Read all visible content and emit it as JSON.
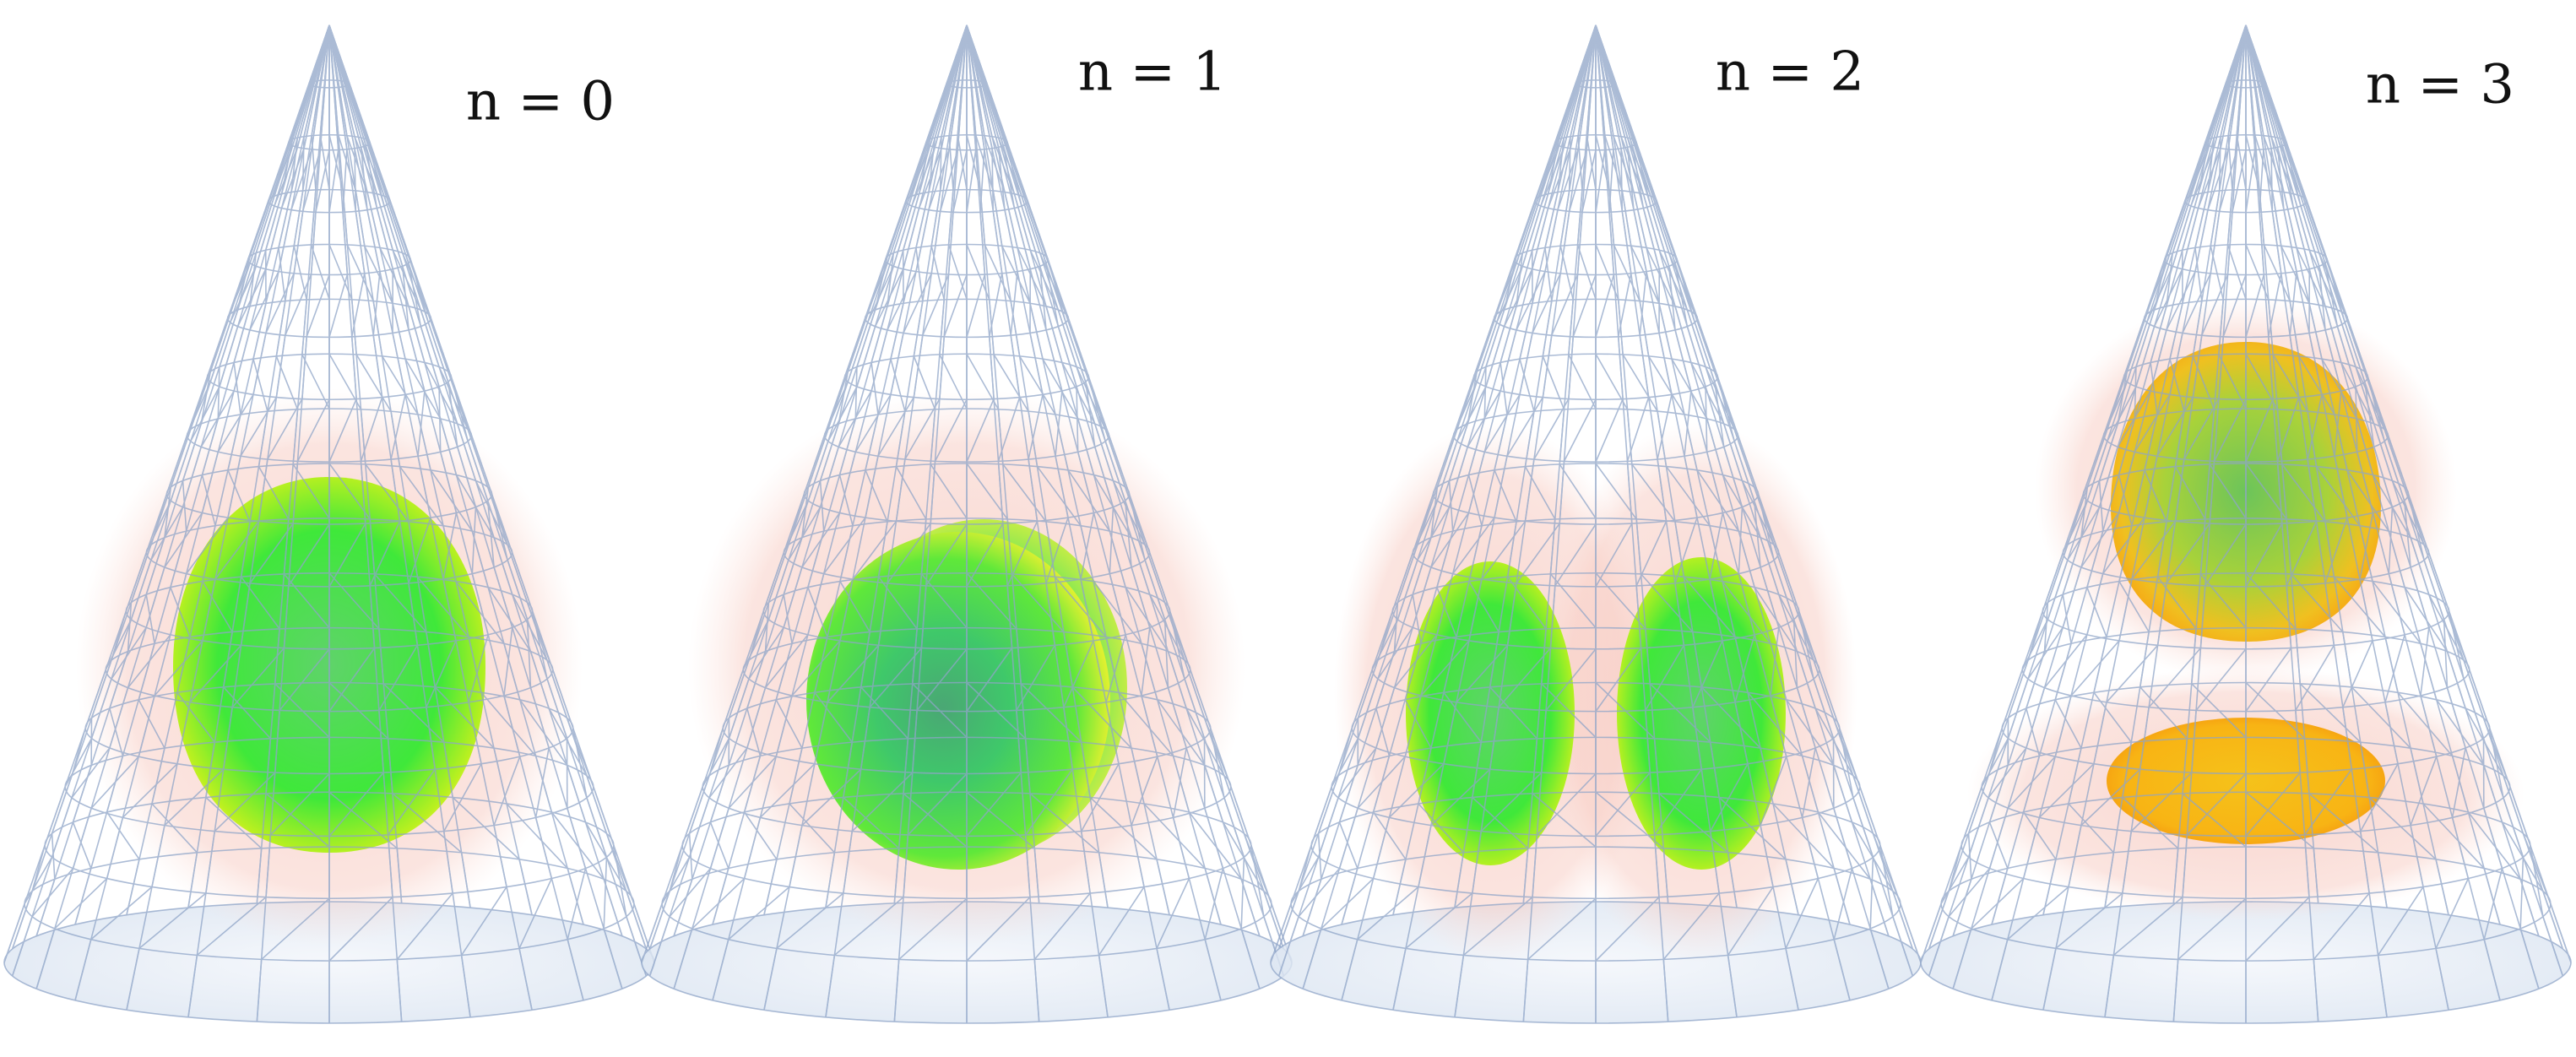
{
  "panels": [
    {
      "label": "n = 0"
    },
    {
      "label": "n = 1"
    },
    {
      "label": "n = 2"
    },
    {
      "label": "n = 3"
    }
  ]
}
